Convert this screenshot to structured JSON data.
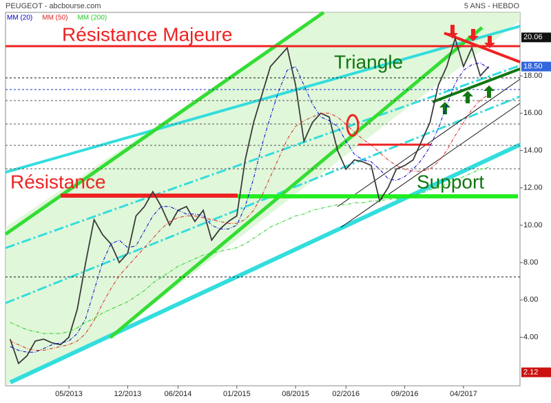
{
  "chart_data": {
    "type": "line",
    "title": "PEUGEOT - abcbourse.com",
    "subtitle": "5 ANS - HEBDO",
    "annotations": [
      "Résistance Majeure",
      "Triangle",
      "Résistance",
      "Support"
    ],
    "categories": [
      null,
      null,
      null,
      null,
      null,
      null,
      null,
      "05/2013",
      null,
      null,
      null,
      null,
      null,
      null,
      "12/2013",
      null,
      null,
      null,
      null,
      null,
      "06/2014",
      null,
      null,
      null,
      null,
      null,
      null,
      "01/2015",
      null,
      null,
      null,
      null,
      null,
      null,
      "08/2015",
      null,
      null,
      null,
      null,
      null,
      "02/2016",
      null,
      null,
      null,
      null,
      null,
      null,
      "09/2016",
      null,
      null,
      null,
      null,
      null,
      null,
      "04/2017",
      null,
      null,
      null
    ],
    "series": [
      {
        "name": "PEUGEOT",
        "color": "#3a3a3a",
        "values": [
          3.9,
          2.6,
          3.0,
          3.8,
          3.9,
          3.7,
          3.6,
          4.0,
          5.5,
          8.0,
          10.3,
          9.5,
          9.0,
          8.0,
          8.5,
          10.5,
          11.0,
          11.8,
          11.0,
          10.0,
          10.8,
          11.0,
          10.2,
          10.8,
          9.2,
          9.8,
          10.2,
          10.5,
          13.5,
          15.5,
          17.0,
          18.5,
          19.0,
          19.5,
          17.5,
          14.5,
          15.5,
          16.0,
          15.8,
          14.0,
          13.0,
          13.5,
          13.4,
          13.2,
          11.3,
          12.0,
          13.0,
          13.2,
          13.5,
          14.5,
          15.5,
          17.5,
          18.5,
          20.0,
          18.5,
          19.5,
          18.0,
          18.5
        ]
      },
      {
        "name": "MM (20)",
        "color": "#0000cc",
        "values": [
          3.5,
          3.3,
          3.2,
          3.2,
          3.4,
          3.6,
          3.7,
          3.8,
          4.2,
          5.0,
          6.5,
          8.0,
          9.0,
          9.2,
          8.8,
          8.9,
          9.7,
          10.5,
          11.0,
          11.0,
          10.8,
          10.6,
          10.6,
          10.5,
          10.0,
          9.8,
          9.8,
          10.0,
          11.0,
          12.5,
          14.3,
          15.8,
          17.2,
          18.3,
          18.5,
          17.5,
          16.5,
          15.8,
          15.6,
          15.3,
          14.5,
          13.8,
          13.5,
          13.4,
          13.0,
          12.5,
          12.4,
          12.6,
          13.0,
          13.5,
          14.2,
          15.2,
          16.4,
          17.6,
          18.3,
          18.6,
          18.7,
          18.4
        ]
      },
      {
        "name": "MM (50)",
        "color": "#dd2222",
        "values": [
          3.8,
          3.6,
          3.4,
          3.3,
          3.3,
          3.4,
          3.5,
          3.6,
          3.8,
          4.2,
          4.9,
          5.8,
          6.6,
          7.3,
          7.8,
          8.3,
          8.8,
          9.3,
          9.8,
          10.2,
          10.4,
          10.5,
          10.5,
          10.4,
          10.3,
          10.2,
          10.1,
          10.1,
          10.3,
          10.8,
          11.6,
          12.6,
          13.6,
          14.6,
          15.3,
          15.6,
          15.8,
          16.0,
          16.0,
          15.8,
          15.4,
          15.0,
          14.6,
          14.3,
          13.9,
          13.5,
          13.2,
          13.0,
          12.9,
          12.9,
          13.0,
          13.4,
          14.0,
          14.8,
          15.5,
          16.2,
          16.7,
          17.0
        ]
      },
      {
        "name": "MM (200)",
        "color": "#22cc22",
        "values": [
          4.8,
          4.6,
          4.4,
          4.3,
          4.2,
          4.2,
          4.2,
          4.3,
          4.5,
          4.8,
          5.0,
          5.3,
          5.5,
          5.7,
          5.9,
          6.2,
          6.5,
          6.9,
          7.2,
          7.5,
          7.8,
          8.0,
          8.2,
          8.4,
          8.5,
          8.6,
          8.7,
          8.8,
          9.0,
          9.3,
          9.6,
          9.9,
          10.1,
          10.3,
          10.5,
          10.6,
          10.8,
          10.9,
          11.0,
          11.1,
          11.1,
          11.2,
          11.2,
          11.3,
          11.3,
          11.4,
          11.4,
          11.5,
          11.6,
          11.7,
          11.9,
          12.0,
          12.2,
          12.4,
          12.6,
          12.8,
          13.0,
          13.1
        ]
      }
    ],
    "ylim": [
      1.4,
      21.4
    ],
    "yticks": [
      {
        "value": 4,
        "label": "4.00"
      },
      {
        "value": 6,
        "label": "6.00"
      },
      {
        "value": 8,
        "label": "8.00"
      },
      {
        "value": 10,
        "label": "10.00"
      },
      {
        "value": 12,
        "label": "12.00"
      },
      {
        "value": 14,
        "label": "14.00"
      },
      {
        "value": 16,
        "label": "16.00"
      },
      {
        "value": 18,
        "label": "18.00"
      }
    ],
    "price_flags": [
      {
        "value": 20.06,
        "label": "20.06",
        "color": "#111111"
      },
      {
        "value": 18.5,
        "label": "18.50",
        "color": "#3366dd"
      },
      {
        "value": 2.12,
        "label": "2.12",
        "color": "#cc1111"
      }
    ]
  }
}
